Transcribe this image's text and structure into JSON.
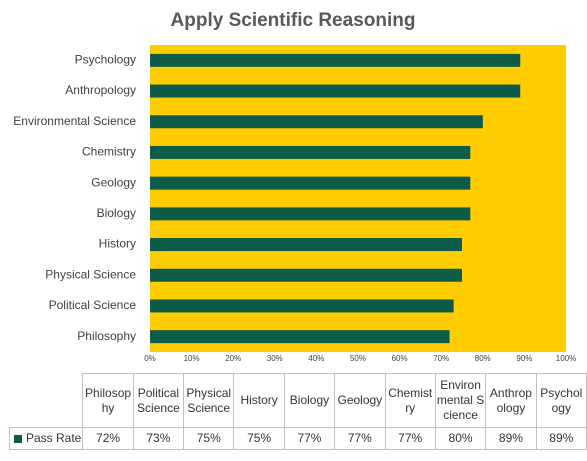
{
  "chart_data": {
    "type": "bar",
    "orientation": "horizontal",
    "title": "Apply Scientific Reasoning",
    "categories": [
      "Philosophy",
      "Political Science",
      "Physical Science",
      "History",
      "Biology",
      "Geology",
      "Chemistry",
      "Environmental Science",
      "Anthropology",
      "Psychology"
    ],
    "series": [
      {
        "name": "Pass Rate",
        "color": "#0d5c48",
        "values": [
          72,
          73,
          75,
          75,
          77,
          77,
          77,
          80,
          89,
          89
        ],
        "value_labels": [
          "72%",
          "73%",
          "75%",
          "75%",
          "77%",
          "77%",
          "77%",
          "80%",
          "89%",
          "89%"
        ]
      }
    ],
    "xlim": [
      0,
      100
    ],
    "xticks": [
      {
        "value": 0,
        "label": "0%"
      },
      {
        "value": 10,
        "label": "10%"
      },
      {
        "value": 20,
        "label": "20%"
      },
      {
        "value": 30,
        "label": "30%"
      },
      {
        "value": 40,
        "label": "40%"
      },
      {
        "value": 50,
        "label": "50%"
      },
      {
        "value": 60,
        "label": "60%"
      },
      {
        "value": 70,
        "label": "70%"
      },
      {
        "value": 80,
        "label": "80%"
      },
      {
        "value": 90,
        "label": "90%"
      },
      {
        "value": 100,
        "label": "100%"
      }
    ],
    "plot_background": "#ffcc00",
    "grid": false,
    "data_table": true
  }
}
